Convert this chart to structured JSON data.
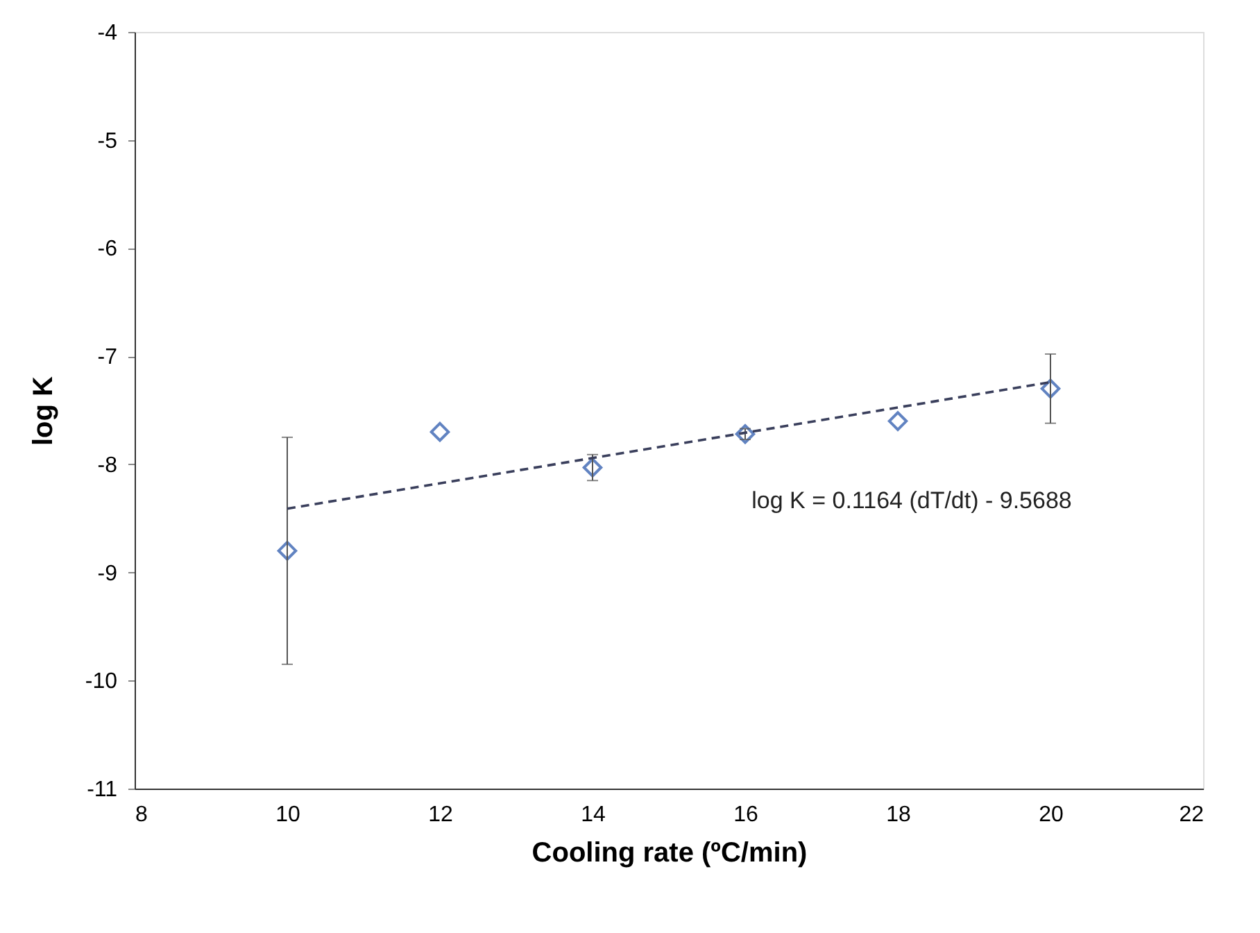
{
  "chart_data": {
    "type": "scatter",
    "xlabel": "Cooling rate (ºC/min)",
    "ylabel": "log K",
    "x": [
      10,
      12,
      14,
      16,
      18,
      20
    ],
    "series": [
      {
        "color": "#1f4fa8",
        "marker": "diamond",
        "values": [
          -8.8,
          -7.7,
          -8.03,
          -7.72,
          -7.6,
          -7.3
        ],
        "errors": [
          1.05,
          null,
          0.12,
          0.05,
          null,
          0.32
        ]
      },
      {
        "type": "line",
        "color": "#3a3f5c",
        "line_style": "dashed",
        "marker": "none",
        "x": [
          10,
          20
        ],
        "values": [
          -8.41,
          -7.24
        ]
      }
    ],
    "annotations": [
      "log K = 0.1164 (dT/dt) - 9.5688"
    ],
    "xlim": [
      8,
      22
    ],
    "xticks": [
      8,
      10,
      12,
      14,
      16,
      18,
      20,
      22
    ],
    "ylim": [
      -11,
      -4
    ],
    "yticks": [
      -11,
      -10,
      -9,
      -8,
      -7,
      -6,
      -5,
      -4
    ],
    "grid": false
  }
}
